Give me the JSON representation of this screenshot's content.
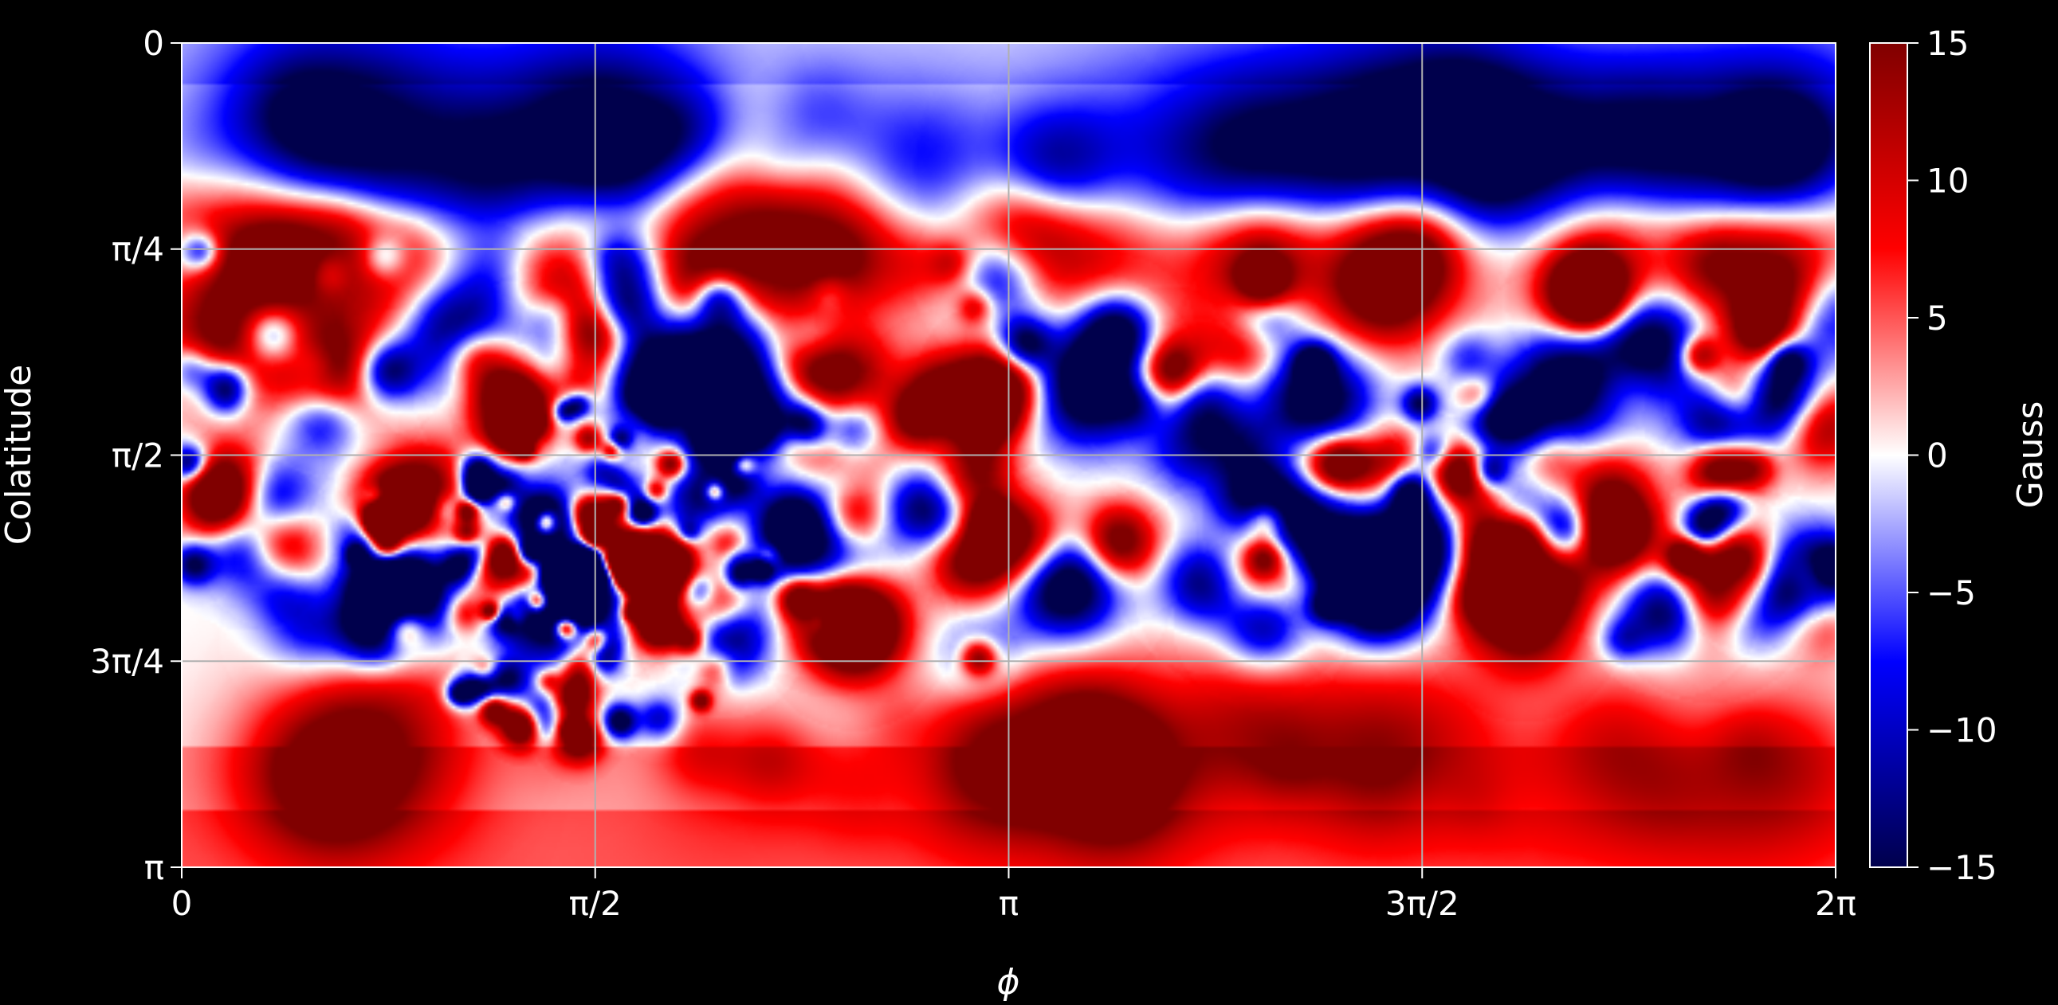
{
  "chart_data": {
    "type": "heatmap",
    "title": "",
    "xlabel": "ϕ",
    "ylabel": "Colatitude",
    "xlim": [
      0,
      6.283185
    ],
    "ylim": [
      0,
      3.141593
    ],
    "y_inverted": true,
    "grid": true,
    "x_ticks": [
      {
        "value": 0,
        "label": "0"
      },
      {
        "value": 1.570796,
        "label": "π/2"
      },
      {
        "value": 3.141593,
        "label": "π"
      },
      {
        "value": 4.712389,
        "label": "3π/2"
      },
      {
        "value": 6.283185,
        "label": "2π"
      }
    ],
    "y_ticks": [
      {
        "value": 0,
        "label": "0"
      },
      {
        "value": 0.785398,
        "label": "π/4"
      },
      {
        "value": 1.570796,
        "label": "π/2"
      },
      {
        "value": 2.356194,
        "label": "3π/4"
      },
      {
        "value": 3.141593,
        "label": "π"
      }
    ],
    "colorbar": {
      "label": "Gauss",
      "colormap": "seismic",
      "range": [
        -15,
        15
      ],
      "ticks": [
        {
          "value": 15,
          "label": "15"
        },
        {
          "value": 10,
          "label": "10"
        },
        {
          "value": 5,
          "label": "5"
        },
        {
          "value": 0,
          "label": "0"
        },
        {
          "value": -5,
          "label": "−5"
        },
        {
          "value": -10,
          "label": "−10"
        },
        {
          "value": -15,
          "label": "−15"
        }
      ]
    },
    "features": [
      {
        "phi": 4.55,
        "theta": 0.95,
        "gauss": 8
      },
      {
        "phi": 5.35,
        "theta": 0.95,
        "gauss": 9
      },
      {
        "phi": 6.1,
        "theta": 0.95,
        "gauss": 13
      },
      {
        "phi": 0.17,
        "theta": 1.15,
        "gauss": 9
      },
      {
        "phi": 0.57,
        "theta": 1.25,
        "gauss": 10
      },
      {
        "phi": 1.27,
        "theta": 1.3,
        "gauss": 15
      },
      {
        "phi": 1.57,
        "theta": 1.1,
        "gauss": 14
      },
      {
        "phi": 1.05,
        "theta": 1.1,
        "gauss": -14
      },
      {
        "phi": 1.4,
        "theta": 1.25,
        "gauss": -13
      },
      {
        "phi": 1.85,
        "theta": 1.25,
        "gauss": -13
      },
      {
        "phi": 2.2,
        "theta": 1.3,
        "gauss": -11
      },
      {
        "phi": 3.1,
        "theta": 1.3,
        "gauss": 15
      },
      {
        "phi": 3.45,
        "theta": 1.3,
        "gauss": -15
      },
      {
        "phi": 3.55,
        "theta": 1.1,
        "gauss": -12
      },
      {
        "phi": 3.75,
        "theta": 1.3,
        "gauss": 13
      },
      {
        "phi": 3.85,
        "theta": 1.35,
        "gauss": -12
      },
      {
        "phi": 4.1,
        "theta": 1.05,
        "gauss": -10
      },
      {
        "phi": 4.3,
        "theta": 1.35,
        "gauss": -13
      },
      {
        "phi": 5.25,
        "theta": 1.3,
        "gauss": -13
      },
      {
        "phi": 5.55,
        "theta": 1.15,
        "gauss": -14
      },
      {
        "phi": 5.9,
        "theta": 1.35,
        "gauss": 13
      },
      {
        "phi": 6.05,
        "theta": 1.35,
        "gauss": -15
      },
      {
        "phi": 6.2,
        "theta": 1.0,
        "gauss": -12
      },
      {
        "phi": 0.25,
        "theta": 1.9,
        "gauss": -13
      },
      {
        "phi": 0.37,
        "theta": 1.92,
        "gauss": 11
      },
      {
        "phi": 1.25,
        "theta": 2.0,
        "gauss": 12
      },
      {
        "phi": 1.45,
        "theta": 1.9,
        "gauss": -13
      },
      {
        "phi": 1.65,
        "theta": 1.9,
        "gauss": 13
      },
      {
        "phi": 1.55,
        "theta": 2.1,
        "gauss": -14
      },
      {
        "phi": 1.35,
        "theta": 2.2,
        "gauss": -14
      },
      {
        "phi": 1.85,
        "theta": 2.0,
        "gauss": 14
      },
      {
        "phi": 2.0,
        "theta": 2.15,
        "gauss": 14
      },
      {
        "phi": 1.9,
        "theta": 2.1,
        "gauss": -14
      },
      {
        "phi": 2.05,
        "theta": 2.25,
        "gauss": -14
      },
      {
        "phi": 2.45,
        "theta": 2.15,
        "gauss": 13
      },
      {
        "phi": 2.55,
        "theta": 2.25,
        "gauss": 14
      },
      {
        "phi": 2.4,
        "theta": 1.95,
        "gauss": -11
      },
      {
        "phi": 3.2,
        "theta": 1.9,
        "gauss": 12
      },
      {
        "phi": 3.35,
        "theta": 2.05,
        "gauss": -15
      },
      {
        "phi": 3.55,
        "theta": 1.9,
        "gauss": 13
      },
      {
        "phi": 3.9,
        "theta": 2.05,
        "gauss": -14
      },
      {
        "phi": 4.05,
        "theta": 2.05,
        "gauss": 13
      },
      {
        "phi": 4.3,
        "theta": 1.8,
        "gauss": -15
      },
      {
        "phi": 4.4,
        "theta": 1.85,
        "gauss": 14
      },
      {
        "phi": 4.55,
        "theta": 2.1,
        "gauss": -14
      },
      {
        "phi": 4.75,
        "theta": 1.85,
        "gauss": -15
      },
      {
        "phi": 4.85,
        "theta": 1.8,
        "gauss": 13
      },
      {
        "phi": 4.95,
        "theta": 2.1,
        "gauss": 13
      },
      {
        "phi": 5.1,
        "theta": 2.2,
        "gauss": 12
      },
      {
        "phi": 5.25,
        "theta": 1.85,
        "gauss": -15
      },
      {
        "phi": 5.4,
        "theta": 1.85,
        "gauss": 13
      },
      {
        "phi": 5.65,
        "theta": 2.15,
        "gauss": -15
      },
      {
        "phi": 5.8,
        "theta": 2.1,
        "gauss": 15
      },
      {
        "phi": 5.95,
        "theta": 2.0,
        "gauss": 14
      },
      {
        "phi": 6.05,
        "theta": 2.05,
        "gauss": -14
      },
      {
        "phi": 4.1,
        "theta": 2.2,
        "gauss": -13
      }
    ]
  }
}
